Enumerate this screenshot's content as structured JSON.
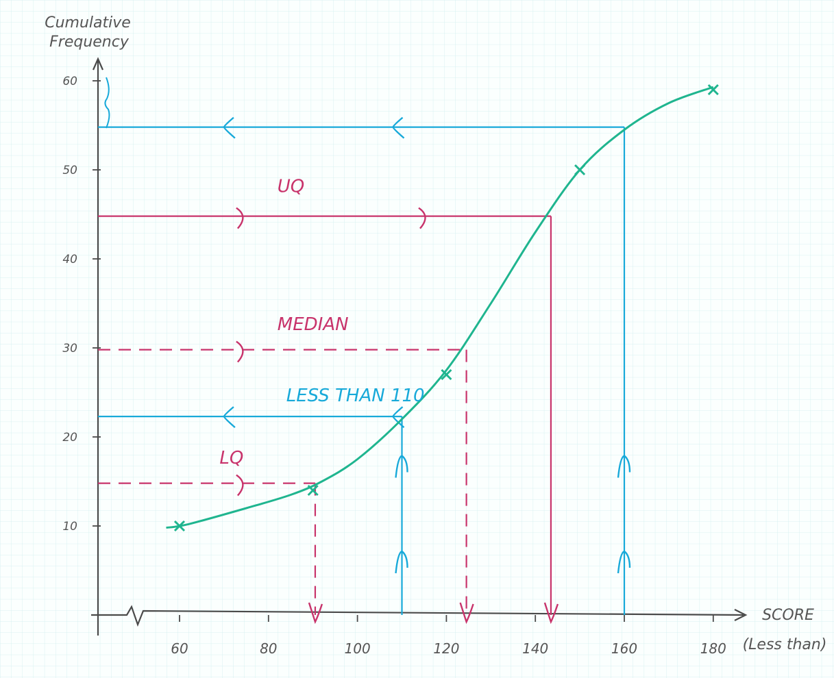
{
  "chart_data": {
    "type": "line",
    "ylabel_line1": "Cumulative",
    "ylabel_line2": "Frequency",
    "xlabel_line1": "SCORE",
    "xlabel_line2": "(Less than)",
    "x_ticks": [
      {
        "v": 60,
        "label": "60"
      },
      {
        "v": 80,
        "label": "80"
      },
      {
        "v": 100,
        "label": "100"
      },
      {
        "v": 120,
        "label": "120"
      },
      {
        "v": 140,
        "label": "140"
      },
      {
        "v": 160,
        "label": "160"
      },
      {
        "v": 180,
        "label": "180"
      }
    ],
    "y_ticks": [
      {
        "v": 10,
        "label": "10"
      },
      {
        "v": 20,
        "label": "20"
      },
      {
        "v": 30,
        "label": "30"
      },
      {
        "v": 40,
        "label": "40"
      },
      {
        "v": 50,
        "label": "50"
      },
      {
        "v": 60,
        "label": "60"
      }
    ],
    "xlim": [
      42,
      190
    ],
    "ylim": [
      0,
      62
    ],
    "axis_break": true,
    "series": [
      {
        "points": [
          {
            "x": 60,
            "y": 10
          },
          {
            "x": 90,
            "y": 14
          },
          {
            "x": 120,
            "y": 27
          },
          {
            "x": 150,
            "y": 50
          },
          {
            "x": 180,
            "y": 59
          }
        ],
        "curve": [
          {
            "x": 57,
            "y": 9.8
          },
          {
            "x": 62,
            "y": 10.2
          },
          {
            "x": 75,
            "y": 12.0
          },
          {
            "x": 85,
            "y": 13.5
          },
          {
            "x": 92,
            "y": 15.0
          },
          {
            "x": 100,
            "y": 17.5
          },
          {
            "x": 110,
            "y": 22.0
          },
          {
            "x": 120,
            "y": 27.5
          },
          {
            "x": 130,
            "y": 35.0
          },
          {
            "x": 140,
            "y": 43.0
          },
          {
            "x": 150,
            "y": 50.0
          },
          {
            "x": 160,
            "y": 54.5
          },
          {
            "x": 170,
            "y": 57.5
          },
          {
            "x": 180,
            "y": 59.3
          }
        ],
        "color": "#1fb58f"
      }
    ],
    "annotations": [
      {
        "label": "UQ",
        "y": 44.8,
        "x_end": 143.5,
        "style": "solid",
        "color": "#c8336b",
        "label_x": 82,
        "label_y": 47.5
      },
      {
        "label": "MEDIAN",
        "y": 29.8,
        "x_end": 124.5,
        "style": "dashed",
        "color": "#c8336b",
        "label_x": 82,
        "label_y": 32.0
      },
      {
        "label": "LESS THAN 110",
        "y": 22.3,
        "x_end": 110,
        "style": "solid",
        "color": "#17a9d9",
        "label_x": 84,
        "label_y": 24.0
      },
      {
        "label": "LQ",
        "y": 14.8,
        "x_end": 90.5,
        "style": "dashed",
        "color": "#c8336b",
        "label_x": 69,
        "label_y": 17.0
      },
      {
        "label": "55",
        "y": 54.8,
        "x_end": 160,
        "style": "solid",
        "color": "#17a9d9"
      }
    ]
  }
}
